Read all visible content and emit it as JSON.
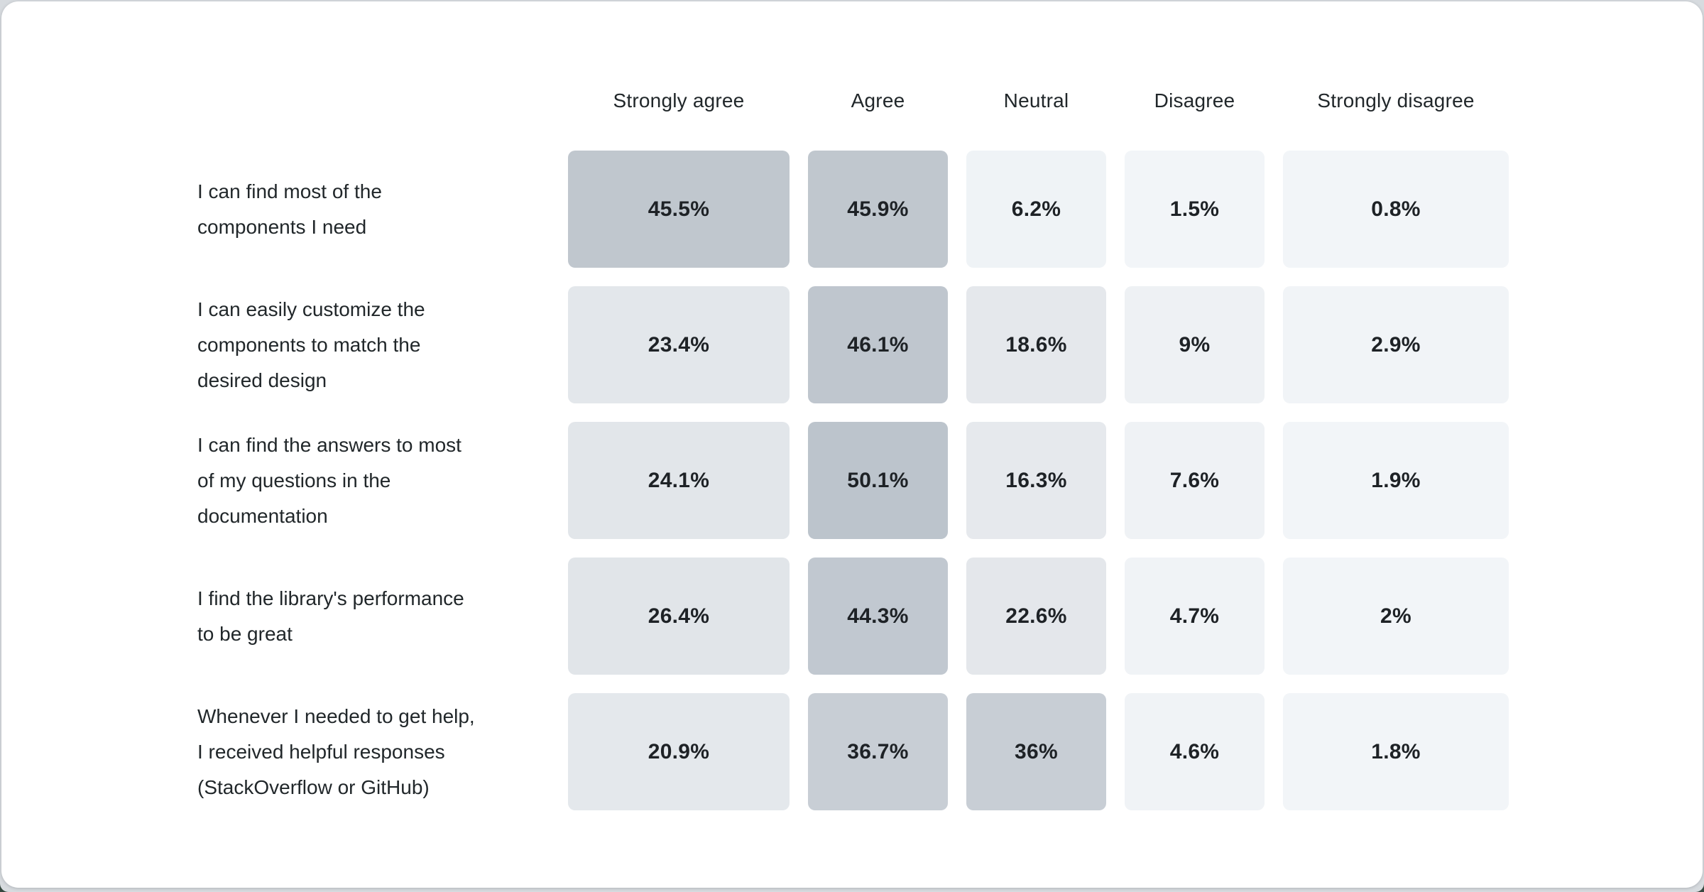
{
  "page": {
    "background_color": "#35473f",
    "frame_color": "#d7dbdf",
    "card_color": "#ffffff"
  },
  "chart_data": {
    "type": "heatmap",
    "title": "",
    "columns": [
      "Strongly agree",
      "Agree",
      "Neutral",
      "Disagree",
      "Strongly disagree"
    ],
    "rows": [
      "I can find most of the components I need",
      "I can easily customize the components to match the desired design",
      "I can find the answers to most of my questions in the documentation",
      "I find the library's performance to be great",
      "Whenever I needed to get help, I received helpful responses (StackOverflow or GitHub)"
    ],
    "values": [
      [
        45.5,
        45.9,
        6.2,
        1.5,
        0.8
      ],
      [
        23.4,
        46.1,
        18.6,
        9,
        2.9
      ],
      [
        24.1,
        50.1,
        16.3,
        7.6,
        1.9
      ],
      [
        26.4,
        44.3,
        22.6,
        4.7,
        2
      ],
      [
        20.9,
        36.7,
        36,
        4.6,
        1.8
      ]
    ],
    "value_format": "percent",
    "color_scale": {
      "min_color": "#f2f5f8",
      "max_color": "#bcc4cc",
      "min_value": 0,
      "max_value": 50.1
    },
    "legend": "none",
    "grid": "off"
  },
  "table": {
    "columns": [
      {
        "label": "Strongly agree"
      },
      {
        "label": "Agree"
      },
      {
        "label": "Neutral"
      },
      {
        "label": "Disagree"
      },
      {
        "label": "Strongly disagree"
      }
    ],
    "rows": [
      {
        "label_lines": {
          "0": "I can find most of the",
          "1": "components I need"
        },
        "cells": [
          {
            "value": "45.5%",
            "color": "#c0c7ce"
          },
          {
            "value": "45.9%",
            "color": "#c0c7ce"
          },
          {
            "value": "6.2%",
            "color": "#eff3f6"
          },
          {
            "value": "1.5%",
            "color": "#f2f5f8"
          },
          {
            "value": "0.8%",
            "color": "#f2f5f8"
          }
        ]
      },
      {
        "label_lines": {
          "0": "I can easily customize the",
          "1": "components to match the",
          "2": "desired design"
        },
        "cells": [
          {
            "value": "23.4%",
            "color": "#e3e7eb"
          },
          {
            "value": "46.1%",
            "color": "#bfc6ce"
          },
          {
            "value": "18.6%",
            "color": "#e5e8ec"
          },
          {
            "value": "9%",
            "color": "#eef1f4"
          },
          {
            "value": "2.9%",
            "color": "#f1f4f7"
          }
        ]
      },
      {
        "label_lines": {
          "0": "I can find the answers to most",
          "1": "of my questions in the",
          "2": "documentation"
        },
        "cells": [
          {
            "value": "24.1%",
            "color": "#e2e6ea"
          },
          {
            "value": "50.1%",
            "color": "#bcc4cc"
          },
          {
            "value": "16.3%",
            "color": "#e6e9ed"
          },
          {
            "value": "7.6%",
            "color": "#eff2f5"
          },
          {
            "value": "1.9%",
            "color": "#f2f5f8"
          }
        ]
      },
      {
        "label_lines": {
          "0": "I find the library's performance",
          "1": "to be great"
        },
        "cells": [
          {
            "value": "26.4%",
            "color": "#e1e5e9"
          },
          {
            "value": "44.3%",
            "color": "#c1c8d0"
          },
          {
            "value": "22.6%",
            "color": "#e4e7eb"
          },
          {
            "value": "4.7%",
            "color": "#f0f3f6"
          },
          {
            "value": "2%",
            "color": "#f2f5f8"
          }
        ]
      },
      {
        "label_lines": {
          "0": "Whenever I needed to get help,",
          "1": "I received helpful responses",
          "2": "(StackOverflow or GitHub)"
        },
        "cells": [
          {
            "value": "20.9%",
            "color": "#e4e8ec"
          },
          {
            "value": "36.7%",
            "color": "#c8ced5"
          },
          {
            "value": "36%",
            "color": "#c8ced5"
          },
          {
            "value": "4.6%",
            "color": "#f0f3f6"
          },
          {
            "value": "1.8%",
            "color": "#f2f5f8"
          }
        ]
      }
    ]
  }
}
